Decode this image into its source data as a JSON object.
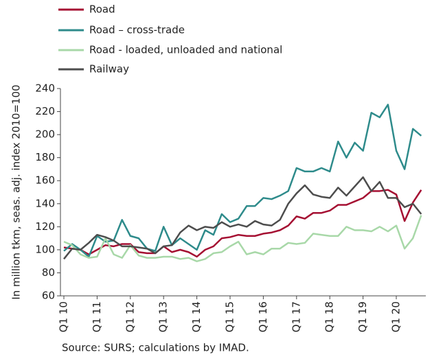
{
  "chart_data": {
    "type": "line",
    "y_label": "In million tkm, seas. adj. index 2010=100",
    "source": "Source: SURS; calculations by IMAD.",
    "categories": [
      "Q1 10",
      null,
      null,
      null,
      "Q1 11",
      null,
      null,
      null,
      "Q1 12",
      null,
      null,
      null,
      "Q1 13",
      null,
      null,
      null,
      "Q1 14",
      null,
      null,
      null,
      "Q1 15",
      null,
      null,
      null,
      "Q1 16",
      null,
      null,
      null,
      "Q1 17",
      null,
      null,
      null,
      "Q1 18",
      null,
      null,
      null,
      "Q1 19",
      null,
      null,
      null,
      "Q1 20",
      null,
      null,
      null
    ],
    "series": [
      {
        "name": "Road",
        "color": "#a50f32",
        "values": [
          102,
          101,
          100,
          96,
          100,
          104,
          103,
          105,
          105,
          98,
          97,
          97,
          103,
          98,
          100,
          98,
          94,
          100,
          103,
          110,
          111,
          113,
          112,
          112,
          114,
          115,
          117,
          121,
          129,
          127,
          132,
          132,
          134,
          139,
          139,
          142,
          145,
          151,
          151,
          152,
          148,
          125,
          141,
          152
        ]
      },
      {
        "name": "Road – cross-trade",
        "color": "#2e8b8b",
        "values": [
          99,
          105,
          100,
          94,
          112,
          107,
          108,
          126,
          112,
          110,
          101,
          99,
          120,
          104,
          110,
          105,
          100,
          117,
          113,
          131,
          124,
          127,
          138,
          138,
          145,
          144,
          147,
          151,
          171,
          168,
          168,
          171,
          168,
          194,
          180,
          193,
          186,
          219,
          215,
          226,
          186,
          170,
          205,
          199
        ]
      },
      {
        "name": "Road - loaded, unloaded and national",
        "color": "#a8d8a8",
        "values": [
          107,
          104,
          96,
          93,
          94,
          110,
          96,
          93,
          104,
          95,
          93,
          93,
          94,
          94,
          92,
          93,
          90,
          92,
          97,
          98,
          103,
          107,
          96,
          98,
          96,
          101,
          101,
          106,
          105,
          106,
          114,
          113,
          112,
          112,
          120,
          117,
          117,
          116,
          120,
          116,
          121,
          101,
          110,
          130
        ]
      },
      {
        "name": "Railway",
        "color": "#4d4d4d",
        "values": [
          92,
          101,
          100,
          106,
          113,
          111,
          108,
          103,
          103,
          102,
          101,
          97,
          103,
          104,
          115,
          121,
          117,
          120,
          119,
          124,
          120,
          122,
          120,
          125,
          122,
          121,
          126,
          140,
          149,
          156,
          148,
          146,
          145,
          154,
          147,
          155,
          163,
          151,
          159,
          145,
          145,
          137,
          140,
          131
        ]
      }
    ],
    "ylim": [
      60,
      240
    ],
    "yticks": [
      60,
      80,
      100,
      120,
      140,
      160,
      180,
      200,
      220,
      240
    ],
    "grid": false
  }
}
